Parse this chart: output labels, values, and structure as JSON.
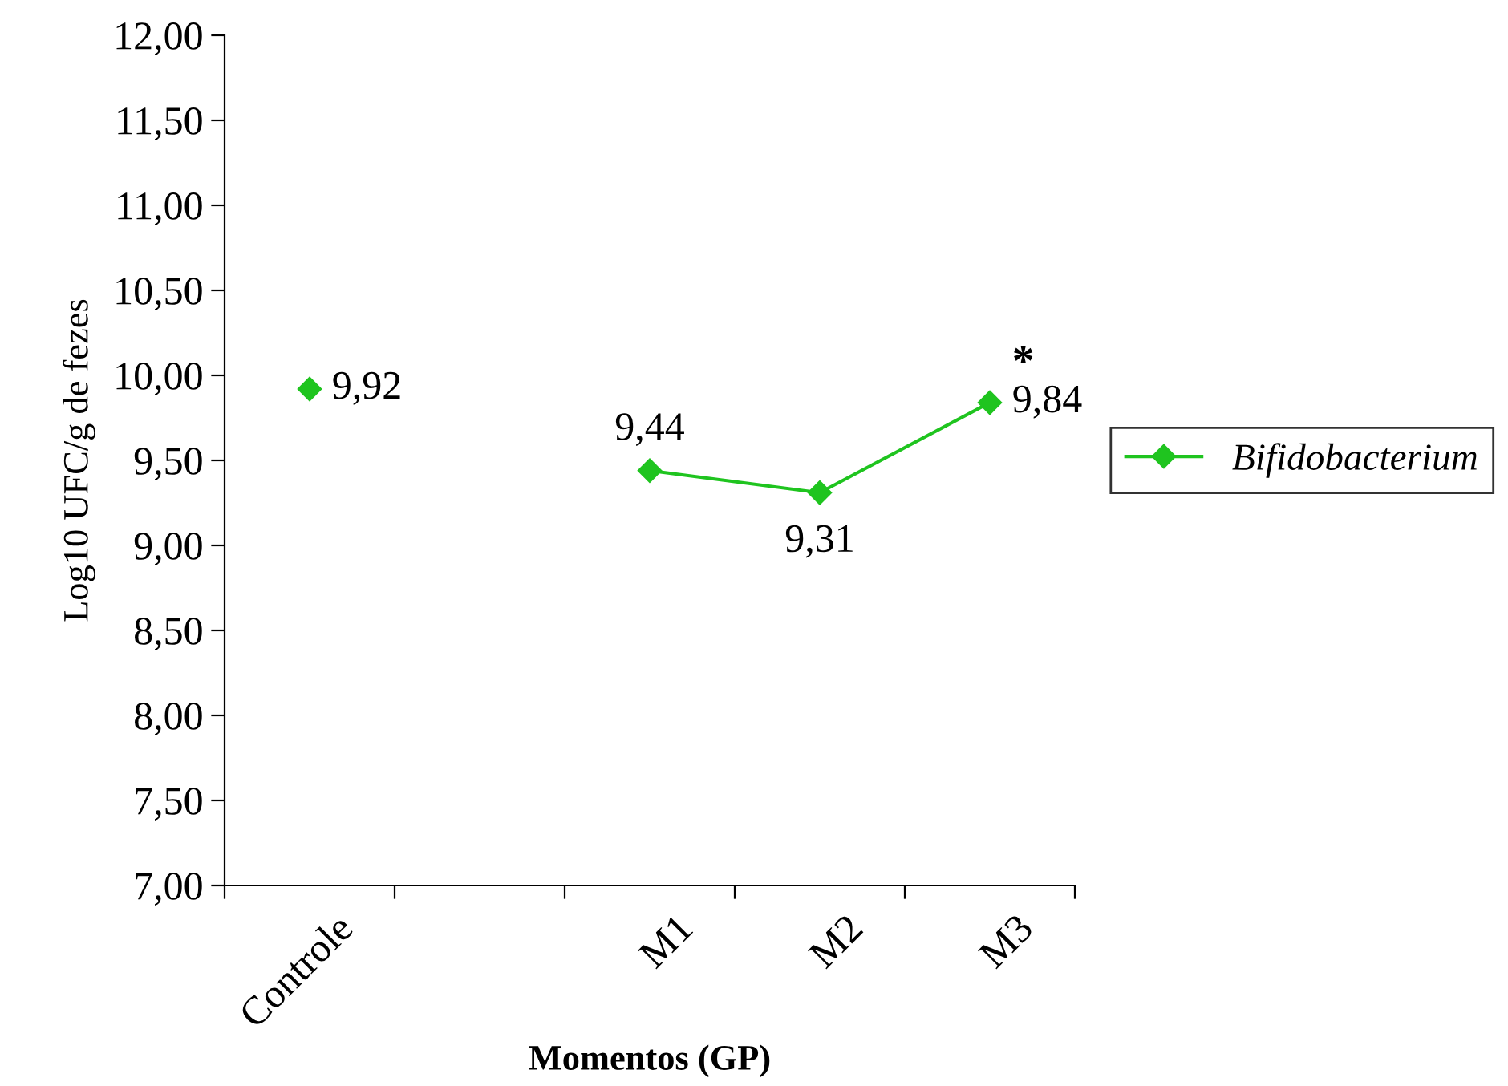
{
  "chart_data": {
    "type": "line",
    "xlabel": "Momentos (GP)",
    "ylabel": "Log10 UFC/g de fezes",
    "categories": [
      "Controle",
      null,
      "M1",
      "M2",
      "M3"
    ],
    "series": [
      {
        "name": "Bifidobacterium",
        "color": "#1fc41f",
        "values": [
          9.92,
          null,
          9.44,
          9.31,
          9.84
        ],
        "value_labels": [
          "9,92",
          null,
          "9,44",
          "9,31",
          "9,84"
        ]
      }
    ],
    "ylim": [
      7,
      12
    ],
    "yticks": [
      {
        "value": 7,
        "label": "7,00"
      },
      {
        "value": 7.5,
        "label": "7,50"
      },
      {
        "value": 8,
        "label": "8,00"
      },
      {
        "value": 8.5,
        "label": "8,50"
      },
      {
        "value": 9,
        "label": "9,00"
      },
      {
        "value": 9.5,
        "label": "9,50"
      },
      {
        "value": 10,
        "label": "10,00"
      },
      {
        "value": 10.5,
        "label": "10,50"
      },
      {
        "value": 11,
        "label": "11,00"
      },
      {
        "value": 11.5,
        "label": "11,50"
      },
      {
        "value": 12,
        "label": "12,00"
      }
    ],
    "annotations": [
      "*"
    ],
    "marker": "diamond",
    "line_style": "solid",
    "grid": false,
    "legend": "right"
  }
}
